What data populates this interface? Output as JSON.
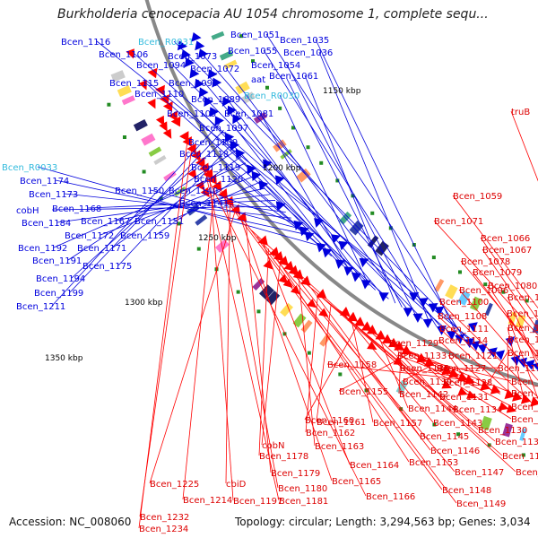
{
  "map": {
    "title": "Burkholderia cenocepacia AU 1054 chromosome 1, complete sequ...",
    "accession": "Accession: NC_008060",
    "topology": "Topology: circular; Length: 3,294,563 bp; Genes: 3,034"
  },
  "colors": {
    "forward_strand": "#0000dd",
    "reverse_strand": "#ff0000",
    "rna_label": "#33bbdd",
    "backbone": "#888888",
    "tick_mark": "#228b22"
  },
  "scale_ticks": [
    "1150 kbp",
    "1200 kbp",
    "1250 kbp",
    "1300 kbp",
    "1350 kbp"
  ],
  "blue_labels": [
    {
      "text": "Bcen_1116",
      "rna": false
    },
    {
      "text": "Bcen_R0031",
      "rna": true
    },
    {
      "text": "Bcen_1051",
      "rna": false
    },
    {
      "text": "Bcen_1035",
      "rna": false
    },
    {
      "text": "Bcen_1106",
      "rna": false
    },
    {
      "text": "Bcen_1073",
      "rna": false
    },
    {
      "text": "Bcen_1055",
      "rna": false
    },
    {
      "text": "Bcen_1036",
      "rna": false
    },
    {
      "text": "Bcen_1094",
      "rna": false
    },
    {
      "text": "Bcen_1054",
      "rna": false
    },
    {
      "text": "Bcen_1072",
      "rna": false
    },
    {
      "text": "aat",
      "rna": false
    },
    {
      "text": "Bcen_1061",
      "rna": false
    },
    {
      "text": "Bcen_1115",
      "rna": false
    },
    {
      "text": "Bcen_1090",
      "rna": false
    },
    {
      "text": "Bcen_1110",
      "rna": false
    },
    {
      "text": "Bcen_R0030",
      "rna": true
    },
    {
      "text": "Bcen_1089",
      "rna": false
    },
    {
      "text": "Bcen_1105",
      "rna": false
    },
    {
      "text": "Bcen_1081",
      "rna": false
    },
    {
      "text": "Bcen_1097",
      "rna": false
    },
    {
      "text": "Bcen_1109",
      "rna": false
    },
    {
      "text": "Bcen_1118",
      "rna": false
    },
    {
      "text": "Bcen_1119",
      "rna": false
    },
    {
      "text": "Bcen_R0033",
      "rna": true
    },
    {
      "text": "Bcen_1120",
      "rna": false
    },
    {
      "text": "Bcen_1174",
      "rna": false
    },
    {
      "text": "Bcen_1150",
      "rna": false
    },
    {
      "text": "Bcen_1140",
      "rna": false
    },
    {
      "text": "Bcen_1173",
      "rna": false
    },
    {
      "text": "Bcen_1141",
      "rna": false
    },
    {
      "text": "cobH",
      "rna": false
    },
    {
      "text": "Bcen_1168",
      "rna": false
    },
    {
      "text": "Bcen_1184",
      "rna": false
    },
    {
      "text": "Bcen_1167",
      "rna": false
    },
    {
      "text": "Bcen_1151",
      "rna": false
    },
    {
      "text": "Bcen_1172",
      "rna": false
    },
    {
      "text": "Bcen_1159",
      "rna": false
    },
    {
      "text": "Bcen_1192",
      "rna": false
    },
    {
      "text": "Bcen_1171",
      "rna": false
    },
    {
      "text": "Bcen_1191",
      "rna": false
    },
    {
      "text": "Bcen_1175",
      "rna": false
    },
    {
      "text": "Bcen_1194",
      "rna": false
    },
    {
      "text": "Bcen_1199",
      "rna": false
    },
    {
      "text": "Bcen_1211",
      "rna": false
    }
  ],
  "red_labels": [
    "truB",
    "Bcen_1059",
    "Bcen_1071",
    "Bcen_1066",
    "Bcen_1067",
    "Bcen_1078",
    "Bcen_1079",
    "Bcen_1080",
    "Bcen_1096",
    "Bcen_1083",
    "Bcen_1100",
    "Bcen_1091",
    "Bcen_1108",
    "Bcen_1095",
    "Bcen_1111",
    "Bcen_1098",
    "Bcen_1129",
    "Bcen_1114",
    "Bcen_1104",
    "Bcen_1133",
    "Bcen_1121",
    "Bcen_1158",
    "Bcen_1138",
    "Bcen_1127",
    "Bcen_1112",
    "Bcen_1139",
    "Bcen_1128",
    "Bcen_1113",
    "Bcen_1155",
    "Bcen_1142",
    "Bcen_1131",
    "Bcen_1117",
    "Bcen_1144",
    "Bcen_1134",
    "Bcen_1122",
    "Bcen_1160",
    "Bcen_1157",
    "Bcen_1143",
    "Bcen_1125",
    "Bcen_1161",
    "Bcen_1130",
    "Bcen_1162",
    "Bcen_1145",
    "Bcen_1132",
    "Bcen_1163",
    "Bcen_1146",
    "Bcen_1135",
    "cobN",
    "Bcen_1153",
    "Bcen_1178",
    "Bcen_1164",
    "Bcen_1147",
    "Bcen_1136",
    "Bcen_1179",
    "Bcen_1165",
    "Bcen_1225",
    "cbiD",
    "Bcen_1180",
    "Bcen_1148",
    "Bcen_1214",
    "Bcen_1197",
    "Bcen_1181",
    "Bcen_1166",
    "Bcen_1149",
    "Bcen_1232",
    "Bcen_1234"
  ]
}
